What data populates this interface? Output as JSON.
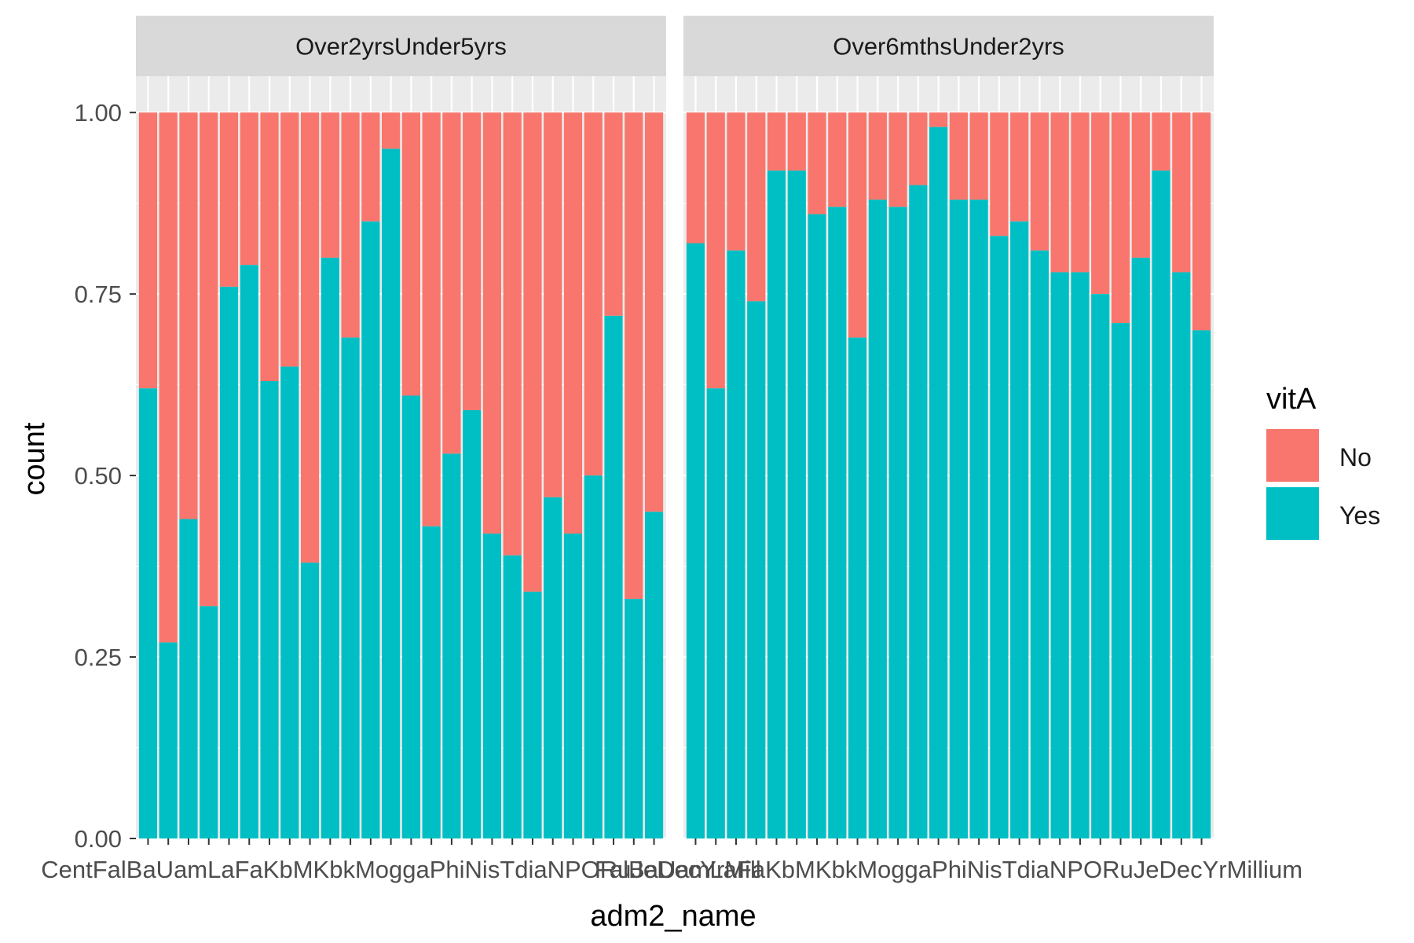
{
  "chart_data": {
    "type": "bar",
    "stacked": true,
    "xlabel": "adm2_name",
    "ylabel": "count",
    "ylim": [
      0,
      1.05
    ],
    "y_ticks": [
      "0.00",
      "0.25",
      "0.50",
      "0.75",
      "1.00"
    ],
    "y_tick_values": [
      0,
      0.25,
      0.5,
      0.75,
      1.0
    ],
    "legend": {
      "title": "vitA",
      "position": "right",
      "entries": [
        {
          "name": "No",
          "color": "#F8766D"
        },
        {
          "name": "Yes",
          "color": "#00BFC4"
        }
      ]
    },
    "panels": [
      {
        "label": "Over2yrsUnder5yrs",
        "x_axis_text": "CentFalBaUamLaFaKbMKbkMoggaPhiNisTdiaNPORuJeDecYrMill",
        "yes_values": [
          0.62,
          0.27,
          0.44,
          0.32,
          0.76,
          0.79,
          0.63,
          0.65,
          0.38,
          0.8,
          0.69,
          0.85,
          0.95,
          0.61,
          0.43,
          0.53,
          0.59,
          0.42,
          0.39,
          0.34,
          0.47,
          0.42,
          0.5,
          0.72,
          0.33,
          0.45
        ]
      },
      {
        "label": "Over6mthsUnder2yrs",
        "x_axis_text": "FalBaUamLaFaKbMKbkMoggaPhiNisTdiaNPORuJeDecYrMillium",
        "yes_values": [
          0.82,
          0.62,
          0.81,
          0.74,
          0.92,
          0.92,
          0.86,
          0.87,
          0.69,
          0.88,
          0.87,
          0.9,
          0.98,
          0.88,
          0.88,
          0.83,
          0.85,
          0.81,
          0.78,
          0.78,
          0.75,
          0.71,
          0.8,
          0.92,
          0.78,
          0.7
        ]
      }
    ]
  }
}
